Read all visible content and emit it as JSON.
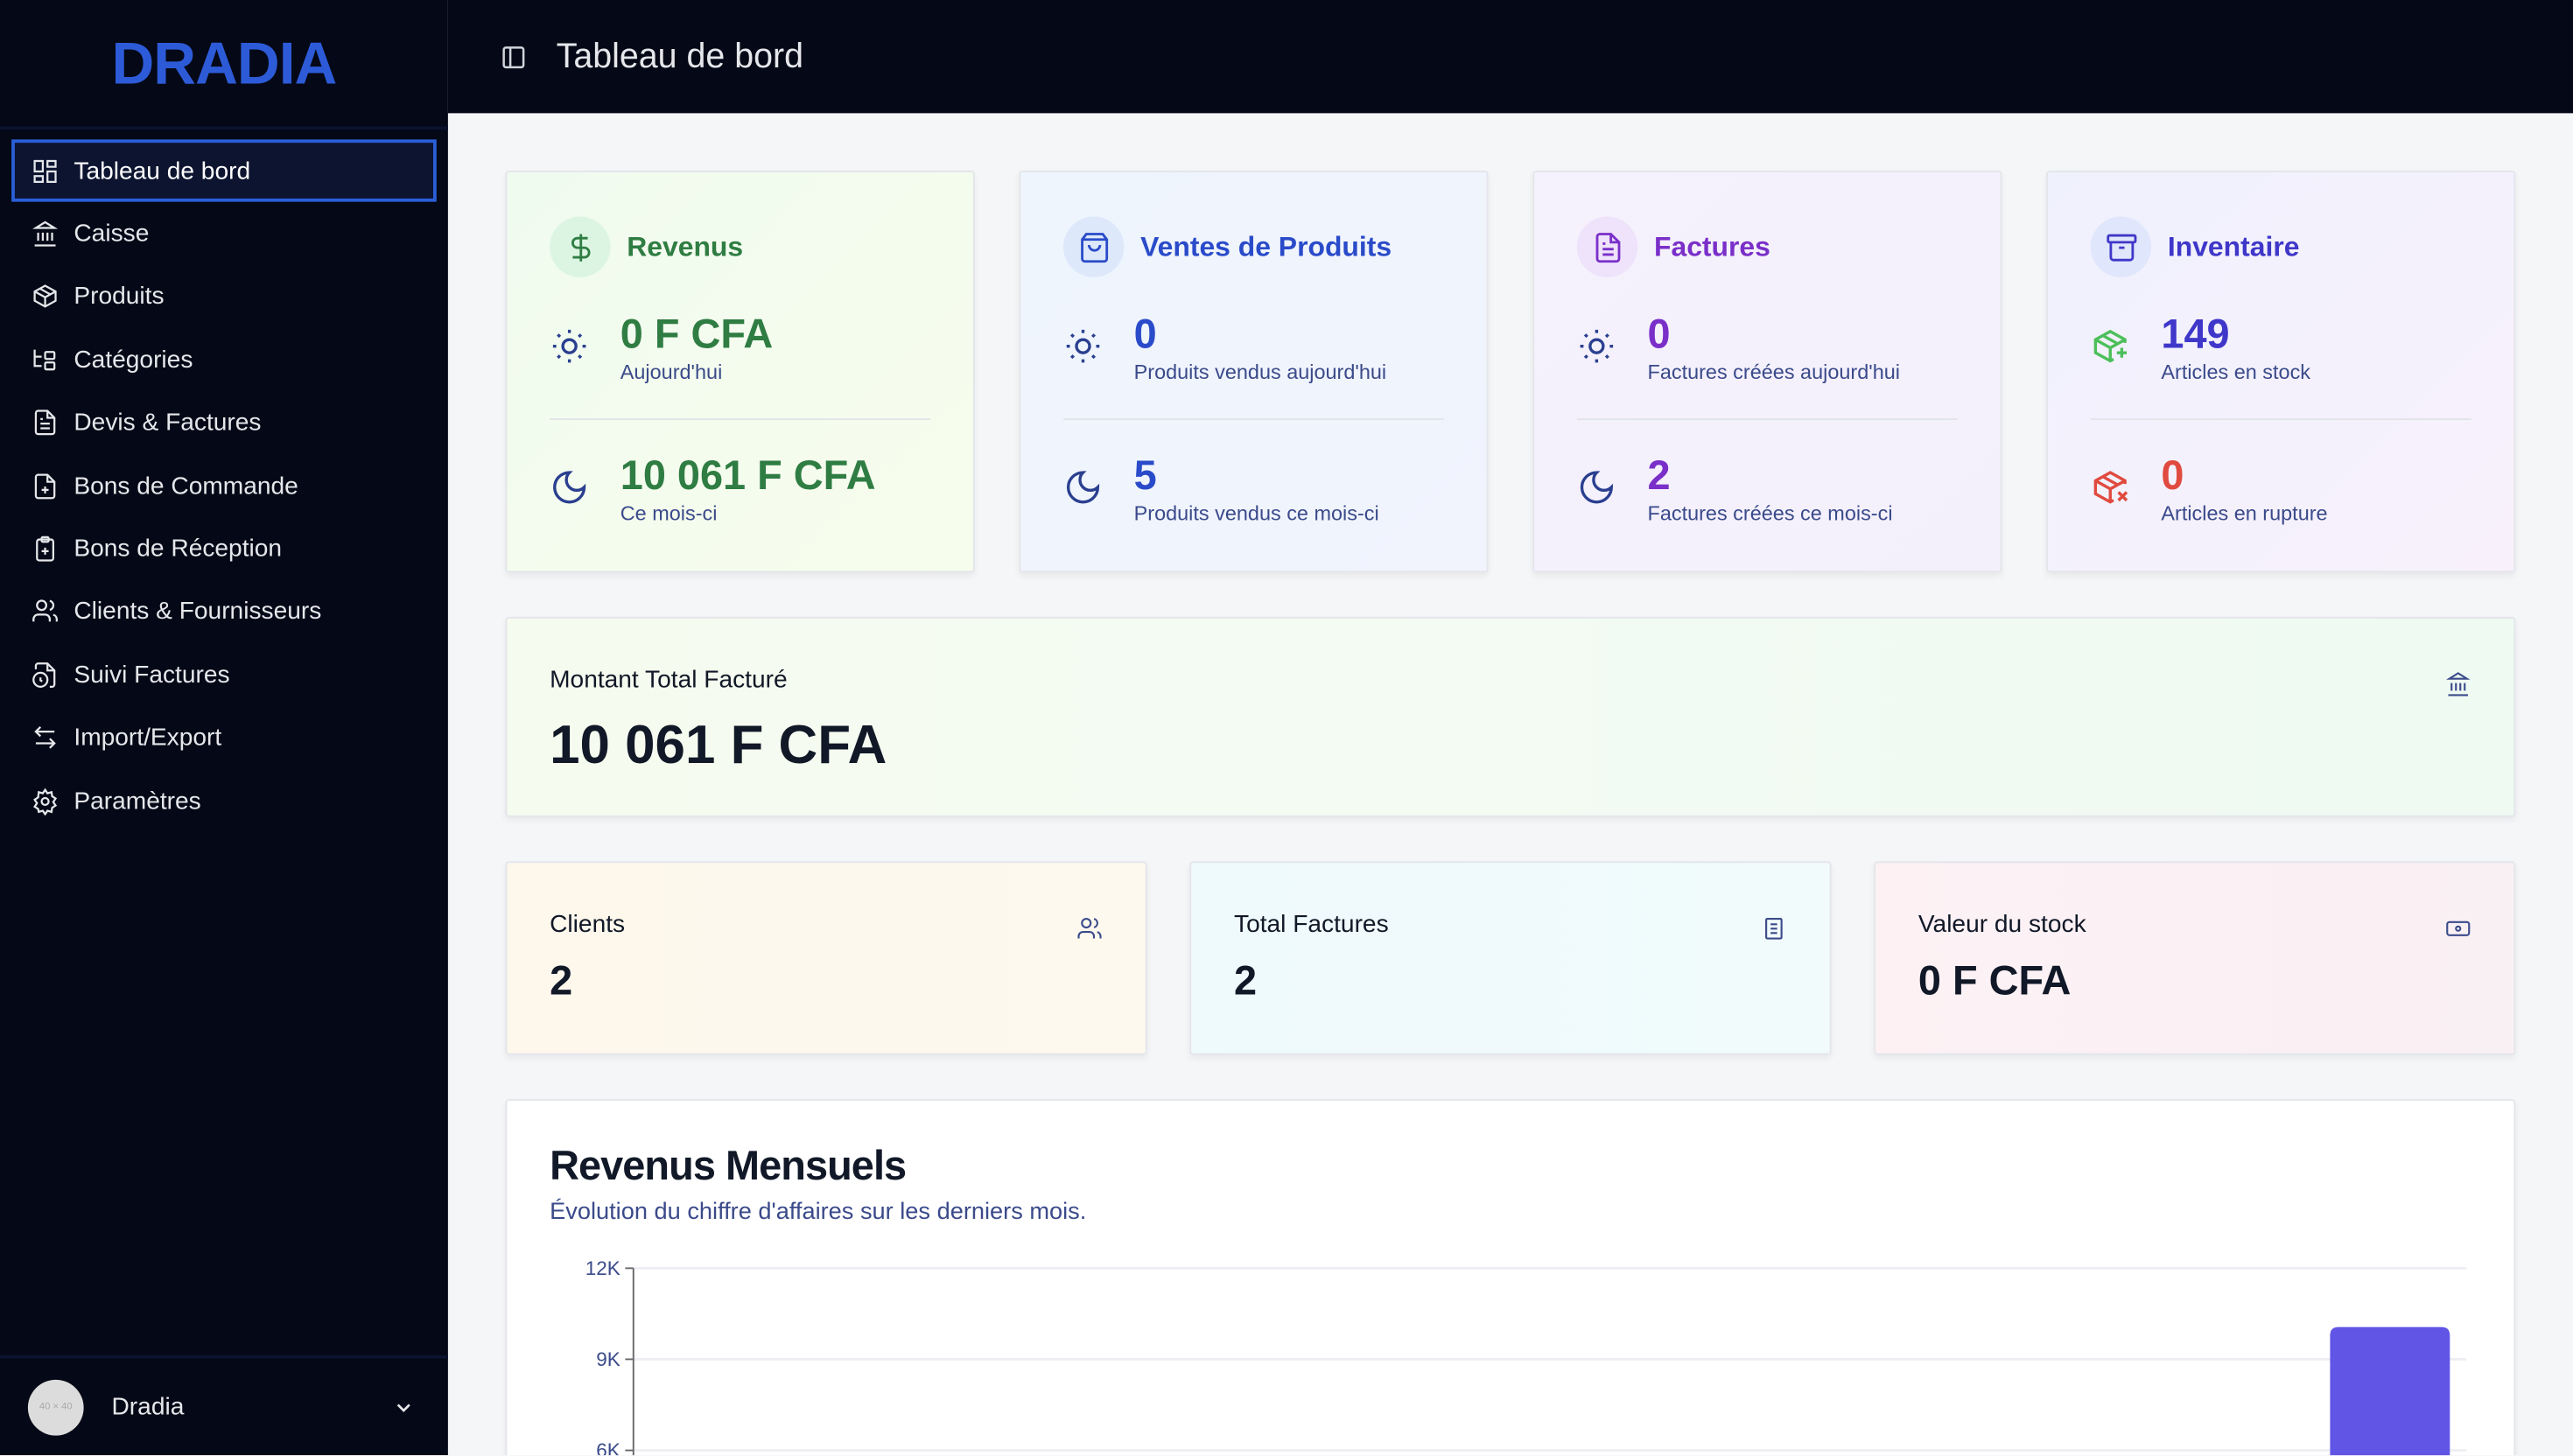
{
  "app": {
    "logo": "DRADIA",
    "page_title": "Tableau de bord"
  },
  "sidebar": {
    "items": [
      {
        "label": "Tableau de bord",
        "icon": "layout-dashboard-icon",
        "active": true
      },
      {
        "label": "Caisse",
        "icon": "landmark-icon"
      },
      {
        "label": "Produits",
        "icon": "package-icon"
      },
      {
        "label": "Catégories",
        "icon": "folder-tree-icon"
      },
      {
        "label": "Devis & Factures",
        "icon": "file-text-icon"
      },
      {
        "label": "Bons de Commande",
        "icon": "file-plus-icon"
      },
      {
        "label": "Bons de Réception",
        "icon": "clipboard-plus-icon"
      },
      {
        "label": "Clients & Fournisseurs",
        "icon": "users-icon"
      },
      {
        "label": "Suivi Factures",
        "icon": "file-clock-icon"
      },
      {
        "label": "Import/Export",
        "icon": "arrow-left-right-icon"
      },
      {
        "label": "Paramètres",
        "icon": "settings-icon"
      }
    ],
    "user": {
      "name": "Dradia",
      "avatar_text": "40 × 40"
    }
  },
  "stats": [
    {
      "title": "Revenus",
      "color": "#2f7d43",
      "icon": "dollar-icon",
      "today_value": "0 F CFA",
      "today_label": "Aujourd'hui",
      "month_value": "10 061 F CFA",
      "month_label": "Ce mois-ci"
    },
    {
      "title": "Ventes de Produits",
      "color": "#2a4bc9",
      "icon": "shopping-bag-icon",
      "today_value": "0",
      "today_label": "Produits vendus aujourd'hui",
      "month_value": "5",
      "month_label": "Produits vendus ce mois-ci"
    },
    {
      "title": "Factures",
      "color": "#7a2fc9",
      "icon": "file-text-icon",
      "today_value": "0",
      "today_label": "Factures créées aujourd'hui",
      "month_value": "2",
      "month_label": "Factures créées ce mois-ci"
    },
    {
      "title": "Inventaire",
      "color": "#3f37c9",
      "icon": "archive-icon",
      "today_value": "149",
      "today_label": "Articles en stock",
      "month_value": "0",
      "month_label": "Articles en rupture",
      "month_color": "#e04a3f"
    }
  ],
  "total": {
    "label": "Montant Total Facturé",
    "value": "10 061 F CFA"
  },
  "summary": [
    {
      "label": "Clients",
      "value": "2",
      "icon": "users-icon"
    },
    {
      "label": "Total Factures",
      "value": "2",
      "icon": "file-icon"
    },
    {
      "label": "Valeur du stock",
      "value": "0 F CFA",
      "icon": "banknote-icon"
    }
  ],
  "revenue_chart": {
    "title": "Revenus Mensuels",
    "subtitle": "Évolution du chiffre d'affaires sur les derniers mois."
  },
  "chart_data": {
    "type": "bar",
    "yticks": [
      "12K",
      "9K",
      "6K"
    ],
    "ylim": [
      0,
      12000
    ],
    "values": [
      0,
      0,
      0,
      0,
      0,
      0,
      0,
      0,
      0,
      0,
      0,
      10061
    ],
    "bar_color": "#6155e6",
    "grid": true
  }
}
